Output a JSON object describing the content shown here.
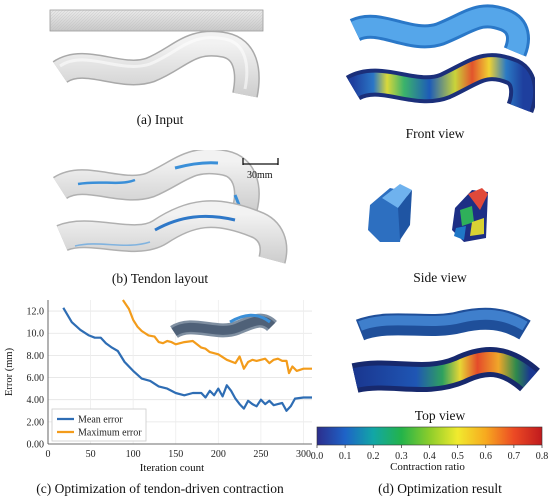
{
  "panels": {
    "a": {
      "caption": "(a) Input"
    },
    "b": {
      "caption": "(b) Tendon layout",
      "scale_label": "30mm"
    },
    "c": {
      "caption": "(c) Optimization of tendon-driven contraction"
    },
    "d": {
      "caption": "(d) Optimization result",
      "views": {
        "front": "Front view",
        "side": "Side view",
        "top": "Top view"
      }
    }
  },
  "colorbar": {
    "label": "Contraction ratio",
    "ticks": [
      "0.0",
      "0.1",
      "0.2",
      "0.3",
      "0.4",
      "0.5",
      "0.6",
      "0.7",
      "0.8"
    ],
    "colors": [
      "#2c2d8c",
      "#1e63c7",
      "#12a6a6",
      "#23b34a",
      "#8ccd2b",
      "#f1ea2e",
      "#f7a91f",
      "#ec4a24",
      "#c01a1e"
    ]
  },
  "colors": {
    "mean": "#2e6db4",
    "max": "#f39c1b",
    "beam_blue": "#3a8fd8"
  },
  "chart_data": {
    "type": "line",
    "xlabel": "Iteration count",
    "ylabel": "Error (mm)",
    "xlim": [
      0,
      310
    ],
    "ylim": [
      0,
      13
    ],
    "xticks": [
      "0",
      "50",
      "100",
      "150",
      "200",
      "250",
      "300"
    ],
    "yticks": [
      "0.00",
      "2.00",
      "4.00",
      "6.00",
      "8.00",
      "10.0",
      "12.0"
    ],
    "legend_position": "lower-left",
    "series": [
      {
        "name": "Mean error",
        "x": [
          18,
          28,
          38,
          48,
          55,
          62,
          68,
          75,
          82,
          90,
          100,
          110,
          120,
          130,
          140,
          150,
          160,
          170,
          180,
          185,
          190,
          195,
          200,
          205,
          210,
          215,
          220,
          225,
          230,
          235,
          240,
          245,
          250,
          255,
          260,
          265,
          270,
          275,
          280,
          285,
          290,
          300,
          310
        ],
        "y": [
          12.3,
          11.0,
          10.3,
          9.8,
          9.6,
          9.6,
          9.1,
          8.7,
          8.4,
          7.4,
          6.6,
          5.9,
          5.7,
          5.2,
          5.0,
          4.6,
          4.4,
          4.6,
          4.6,
          4.2,
          4.8,
          4.4,
          5.0,
          4.3,
          5.3,
          4.8,
          4.1,
          3.6,
          3.2,
          3.9,
          3.6,
          3.4,
          4.0,
          3.6,
          3.9,
          3.5,
          3.6,
          3.7,
          3.0,
          3.4,
          4.1,
          4.2,
          4.2
        ]
      },
      {
        "name": "Maximum error",
        "x": [
          88,
          95,
          100,
          105,
          110,
          118,
          125,
          130,
          135,
          140,
          145,
          150,
          160,
          170,
          180,
          185,
          190,
          200,
          210,
          220,
          225,
          230,
          235,
          240,
          245,
          250,
          255,
          260,
          265,
          270,
          275,
          280,
          283,
          287,
          292,
          300,
          310
        ],
        "y": [
          13.0,
          12.2,
          11.2,
          10.6,
          10.2,
          9.8,
          9.7,
          9.2,
          9.1,
          9.3,
          9.2,
          9.0,
          9.2,
          9.3,
          8.7,
          8.6,
          8.3,
          8.1,
          7.6,
          7.3,
          7.9,
          6.8,
          7.4,
          7.6,
          7.5,
          7.6,
          7.7,
          7.3,
          7.6,
          7.7,
          7.5,
          7.5,
          6.4,
          7.0,
          6.6,
          6.8,
          6.8
        ]
      }
    ]
  }
}
